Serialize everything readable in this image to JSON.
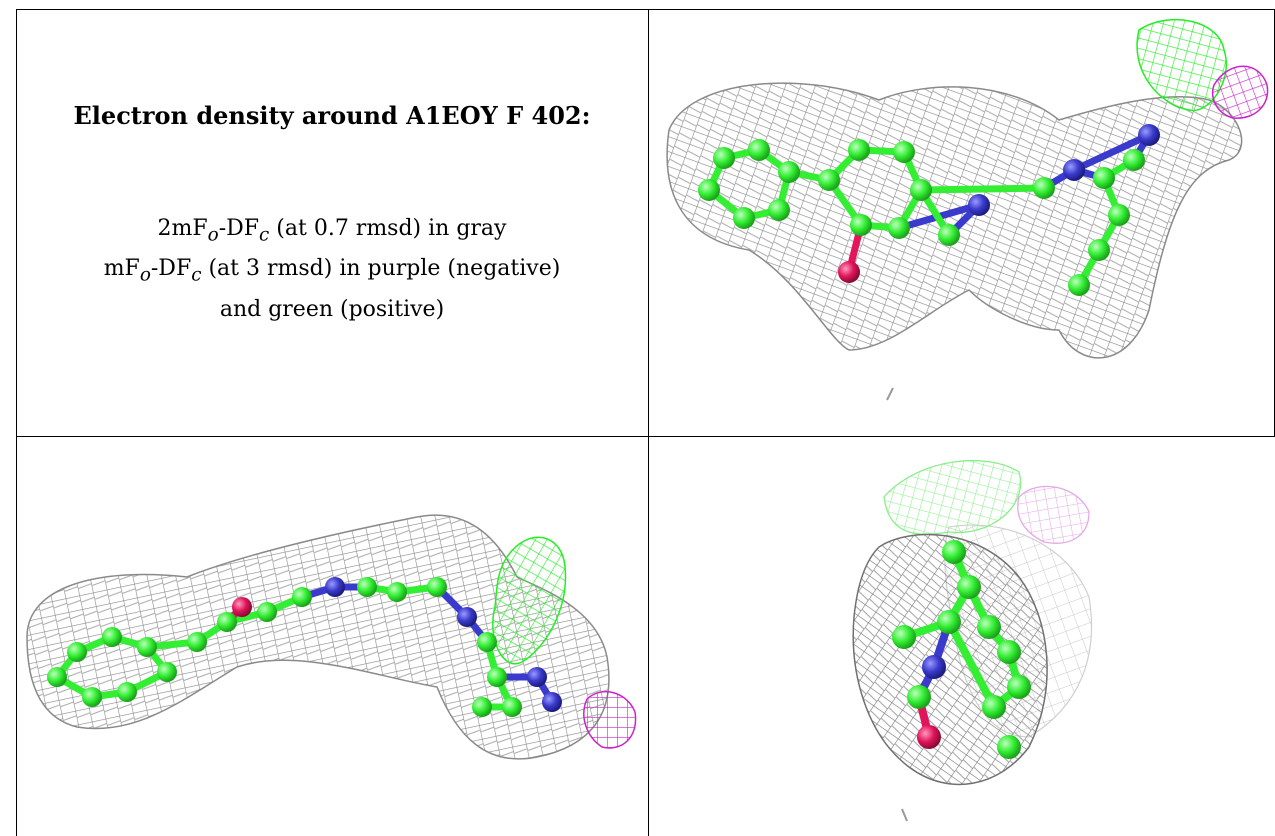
{
  "caption": {
    "title": "Electron density around A1EOY F 402:",
    "line1": {
      "prefix": "2mF",
      "sub1": "o",
      "mid": "-DF",
      "sub2": "c",
      "rest": " (at 0.7 rmsd) in gray"
    },
    "line2": {
      "prefix": "mF",
      "sub1": "o",
      "mid": "-DF",
      "sub2": "c",
      "rest": " (at 3 rmsd) in purple (negative)"
    },
    "line3": "and green (positive)"
  },
  "colors": {
    "mesh": "#8a8a8a",
    "carbon": "#33ee33",
    "nitrogen": "#3a3acc",
    "oxygen": "#e0155a",
    "positive_density": "#22ee22",
    "negative_density": "#cc22cc",
    "border": "#000000"
  },
  "panels": [
    {
      "name": "view-top-right",
      "icon": "ligand-density-view-1"
    },
    {
      "name": "view-bottom-left",
      "icon": "ligand-density-view-2"
    },
    {
      "name": "view-bottom-right",
      "icon": "ligand-density-view-3"
    }
  ]
}
